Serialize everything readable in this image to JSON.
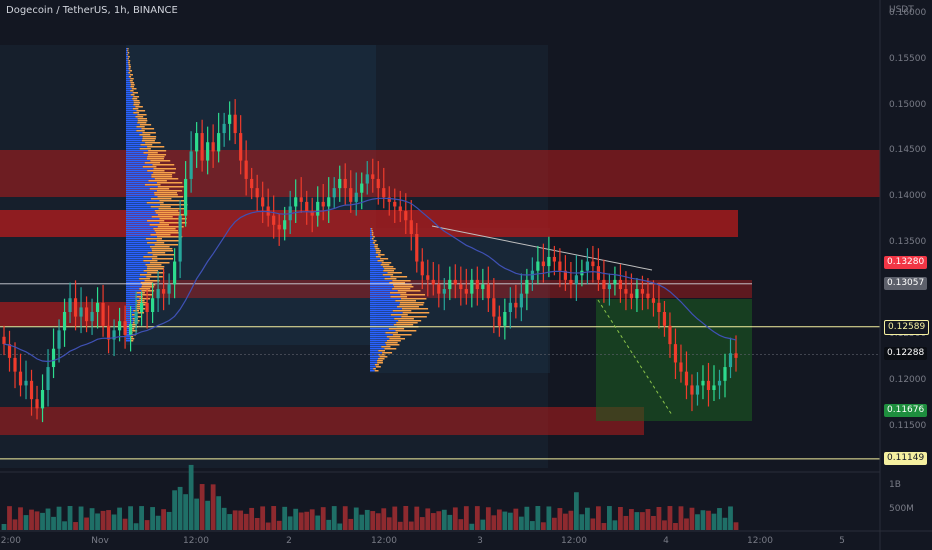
{
  "header": {
    "title": "Dogecoin / TetherUS, 1h, BINANCE"
  },
  "axis": {
    "currency": "USDT",
    "volume_labels": [
      "1B",
      "500M"
    ]
  },
  "colors": {
    "up": "#26a69a",
    "up_bright": "#2ddc8e",
    "down": "#ef3b2c",
    "bg": "#131722",
    "zone_red": "#b71c1c",
    "zone_green": "#1b5e20",
    "vwap": "#3f51b5",
    "hline": "#f5f0a0"
  },
  "price_tags": [
    {
      "value": "0.13280",
      "bg": "#f23645",
      "fg": "#ffffff"
    },
    {
      "value": "0.13057",
      "bg": "#5d606b",
      "fg": "#ffffff"
    },
    {
      "value": "0.12589",
      "bg": "#131722",
      "fg": "#f5f0a0",
      "border": "#f5f0a0"
    },
    {
      "value": "0.12288",
      "bg": "#0b0e14",
      "fg": "#ffffff"
    },
    {
      "value": "0.11676",
      "bg": "#1e8e3e",
      "fg": "#ffffff"
    },
    {
      "value": "0.11149",
      "bg": "#f5f0a0",
      "fg": "#131722"
    }
  ],
  "chart_data": {
    "type": "candlestick",
    "title": "Dogecoin / TetherUS, 1h, BINANCE",
    "y_unit": "USDT",
    "ylim": [
      0.1105,
      0.1615
    ],
    "y_ticks": [
      "0.16000",
      "0.15500",
      "0.15000",
      "0.14500",
      "0.14000",
      "0.13500",
      "0.13000",
      "0.12500",
      "0.12000",
      "0.11500"
    ],
    "x_ticks": [
      "12:00",
      "Nov",
      "12:00",
      "2",
      "12:00",
      "3",
      "12:00",
      "4",
      "12:00",
      "5"
    ],
    "horizontal_lines": [
      0.12589,
      0.11149,
      0.13057
    ],
    "closes": [
      0.124,
      0.1225,
      0.121,
      0.1195,
      0.12,
      0.118,
      0.117,
      0.119,
      0.1215,
      0.1235,
      0.1255,
      0.1275,
      0.129,
      0.127,
      0.128,
      0.1265,
      0.1275,
      0.1285,
      0.126,
      0.1245,
      0.1255,
      0.1265,
      0.125,
      0.1262,
      0.1275,
      0.1285,
      0.1275,
      0.129,
      0.13,
      0.1295,
      0.1305,
      0.133,
      0.138,
      0.142,
      0.145,
      0.147,
      0.144,
      0.146,
      0.145,
      0.147,
      0.148,
      0.149,
      0.147,
      0.144,
      0.142,
      0.141,
      0.14,
      0.139,
      0.138,
      0.137,
      0.1365,
      0.1375,
      0.139,
      0.14,
      0.1395,
      0.1385,
      0.138,
      0.1395,
      0.139,
      0.14,
      0.141,
      0.142,
      0.141,
      0.1395,
      0.1405,
      0.1415,
      0.1425,
      0.142,
      0.141,
      0.14,
      0.1395,
      0.139,
      0.1385,
      0.1375,
      0.136,
      0.133,
      0.1315,
      0.131,
      0.1305,
      0.1295,
      0.13,
      0.131,
      0.1305,
      0.13,
      0.1295,
      0.131,
      0.13,
      0.1305,
      0.129,
      0.127,
      0.126,
      0.1275,
      0.1285,
      0.128,
      0.1295,
      0.131,
      0.132,
      0.133,
      0.1325,
      0.1335,
      0.133,
      0.132,
      0.131,
      0.1305,
      0.1315,
      0.132,
      0.133,
      0.1325,
      0.131,
      0.13,
      0.1305,
      0.131,
      0.13,
      0.1295,
      0.129,
      0.13,
      0.1295,
      0.129,
      0.1285,
      0.1275,
      0.126,
      0.124,
      0.122,
      0.121,
      0.1195,
      0.1185,
      0.1195,
      0.12,
      0.119,
      0.1195,
      0.12,
      0.1215,
      0.123,
      0.1225
    ],
    "volume_scale": "0 to 1B",
    "overlays": [
      "volume profile",
      "anchored vwap",
      "supply/demand zones",
      "long position box",
      "trendline"
    ]
  }
}
